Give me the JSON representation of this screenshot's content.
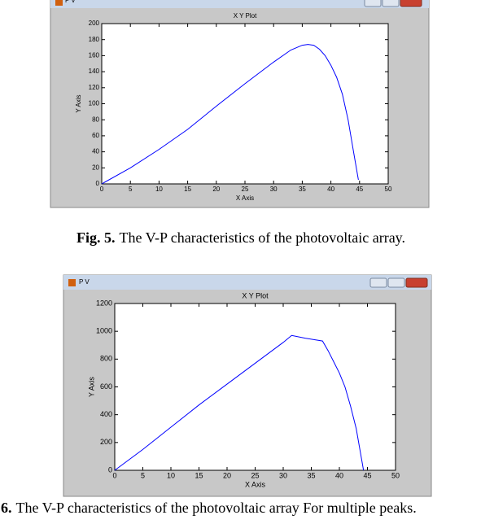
{
  "chart_data": [
    {
      "type": "line",
      "window_title": "P V",
      "title": "X Y Plot",
      "xlabel": "X Axis",
      "ylabel": "Y Axis",
      "color": "#0000ff",
      "x": [
        0,
        5,
        10,
        15,
        20,
        25,
        30,
        33,
        35,
        36,
        37,
        38,
        39,
        40,
        41,
        42,
        43,
        44,
        44.8
      ],
      "values": [
        0,
        20,
        43,
        68,
        97,
        125,
        152,
        167,
        173,
        174,
        173,
        168,
        160,
        148,
        133,
        112,
        80,
        38,
        5
      ],
      "xlim": [
        0,
        50
      ],
      "xticks": [
        0,
        5,
        10,
        15,
        20,
        25,
        30,
        35,
        40,
        45,
        50
      ],
      "ylim": [
        0,
        200
      ],
      "yticks": [
        0,
        20,
        40,
        60,
        80,
        100,
        120,
        140,
        160,
        180,
        200
      ]
    },
    {
      "type": "line",
      "window_title": "P V",
      "title": "X Y Plot",
      "xlabel": "X Axis",
      "ylabel": "Y Axis",
      "color": "#0000ff",
      "x": [
        0,
        5,
        10,
        15,
        20,
        25,
        30,
        31.5,
        34,
        37,
        38,
        39,
        40,
        41,
        42,
        43,
        44,
        44.3
      ],
      "values": [
        0,
        150,
        310,
        470,
        620,
        770,
        920,
        970,
        950,
        930,
        860,
        780,
        700,
        600,
        460,
        300,
        70,
        0
      ],
      "xlim": [
        0,
        50
      ],
      "xticks": [
        0,
        5,
        10,
        15,
        20,
        25,
        30,
        35,
        40,
        45,
        50
      ],
      "ylim": [
        0,
        1200
      ],
      "yticks": [
        0,
        200,
        400,
        600,
        800,
        1000,
        1200
      ]
    }
  ],
  "captions": [
    {
      "label": "Fig. 5.",
      "text": "The V-P characteristics of the photovoltaic array."
    },
    {
      "label": "6.",
      "text": "The V-P characteristics of the photovoltaic array For multiple peaks."
    }
  ]
}
